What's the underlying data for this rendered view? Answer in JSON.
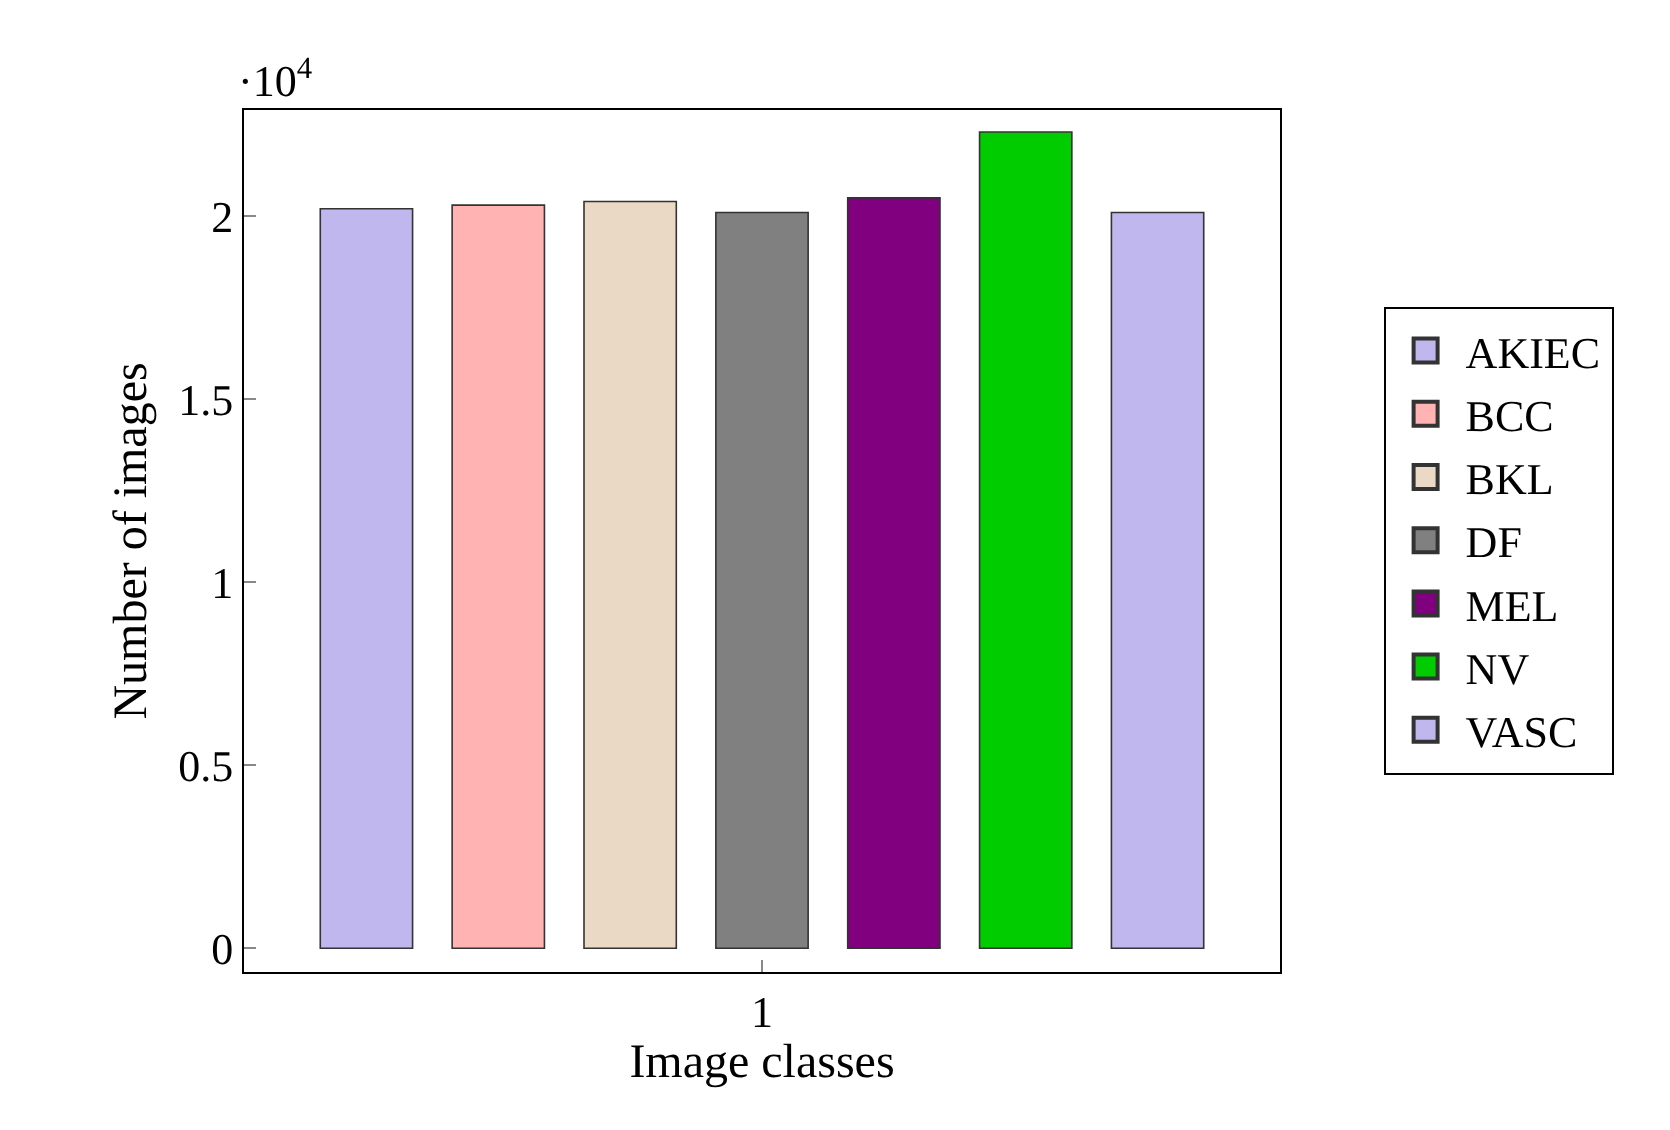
{
  "chart_data": {
    "type": "bar",
    "xlabel": "Image classes",
    "ylabel": "Number of images",
    "categories": [
      "1"
    ],
    "series": [
      {
        "name": "AKIEC",
        "color": "#bfb7ee",
        "values": [
          2.02
        ]
      },
      {
        "name": "BCC",
        "color": "#ffb3b3",
        "values": [
          2.03
        ]
      },
      {
        "name": "BKL",
        "color": "#ead9c4",
        "values": [
          2.04
        ]
      },
      {
        "name": "DF",
        "color": "#808080",
        "values": [
          2.01
        ]
      },
      {
        "name": "MEL",
        "color": "#800080",
        "values": [
          2.05
        ]
      },
      {
        "name": "NV",
        "color": "#00cc00",
        "values": [
          2.23
        ]
      },
      {
        "name": "VASC",
        "color": "#bfb7ee",
        "values": [
          2.01
        ]
      }
    ],
    "ylim": [
      -0.065,
      2.29
    ],
    "yticks": [
      0,
      0.5,
      1,
      1.5,
      2
    ],
    "annotations": [
      "·10$^{4}$"
    ],
    "legend": "right"
  }
}
